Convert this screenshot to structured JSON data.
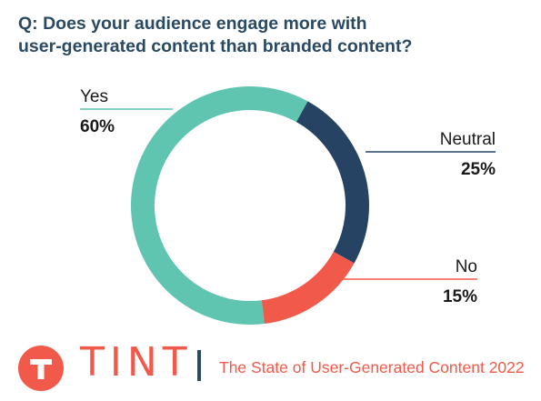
{
  "question": {
    "line1": "Q: Does your audience engage more with",
    "line2": "user-generated content than branded content?"
  },
  "colors": {
    "title": "#2a4a62",
    "yes": "#5fc4b0",
    "neutral": "#264363",
    "no": "#f15a4a",
    "brand": "#f15a4a"
  },
  "chart_data": {
    "type": "pie",
    "donut": true,
    "categories": [
      "Yes",
      "Neutral",
      "No"
    ],
    "values": [
      60,
      25,
      15
    ],
    "labels": [
      "60%",
      "25%",
      "15%"
    ],
    "title": "Q: Does your audience engage more with user-generated content than branded content?",
    "legend": "none (callout labels)"
  },
  "footer": {
    "brand": "TINT",
    "logo_icon": "tint-t-logo-icon",
    "report_title": "The State of User-Generated Content 2022"
  }
}
